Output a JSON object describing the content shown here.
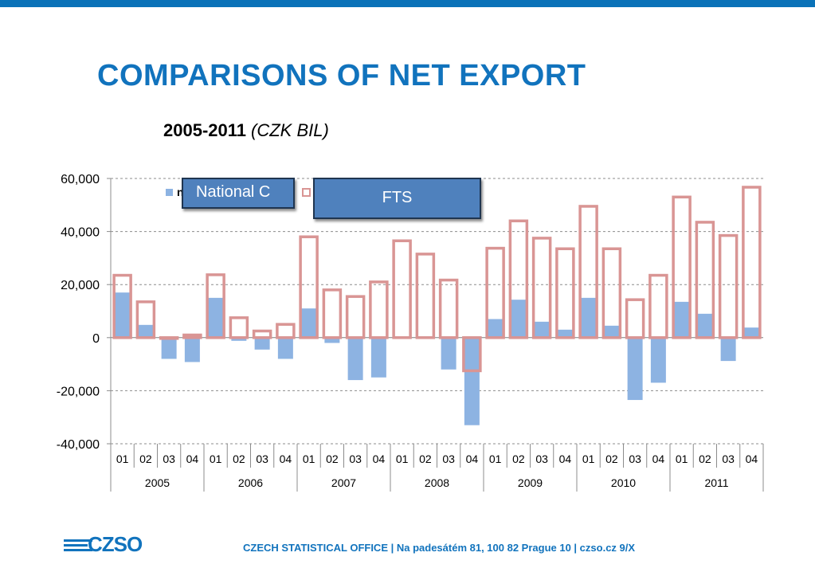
{
  "header": {
    "title": "COMPARISONS OF NET EXPORT"
  },
  "subtitle": {
    "years": "2005-2011",
    "unit": "(CZK BIL)"
  },
  "callouts": {
    "national": "National C",
    "fts": "FTS"
  },
  "legend": {
    "partial_text": "n"
  },
  "footer": {
    "text": "CZECH STATISTICAL OFFICE  |  Na padesátém 81, 100 82 Prague 10  |  czso.cz        9/X"
  },
  "logo": {
    "text": "CZSO"
  },
  "colors": {
    "brand": "#1173bd",
    "bar_fill": "#8db3e2",
    "bar_outline": "#d99594",
    "callout": "#4f81bd"
  },
  "chart_data": {
    "type": "bar",
    "title": "2005-2011 (CZK BIL)",
    "xlabel": "",
    "ylabel": "",
    "ylim": [
      -40000,
      60000
    ],
    "yticks": [
      -40000,
      -20000,
      0,
      20000,
      40000,
      60000
    ],
    "ytick_labels": [
      "-40,000",
      "-20,000",
      "0",
      "20,000",
      "40,000",
      "60,000"
    ],
    "grid": true,
    "categories": [
      "01",
      "02",
      "03",
      "04",
      "01",
      "02",
      "03",
      "04",
      "01",
      "02",
      "03",
      "04",
      "01",
      "02",
      "03",
      "04",
      "01",
      "02",
      "03",
      "04",
      "01",
      "02",
      "03",
      "04",
      "01",
      "02",
      "03",
      "04"
    ],
    "groups": [
      "2005",
      "2006",
      "2007",
      "2008",
      "2009",
      "2010",
      "2011"
    ],
    "series": [
      {
        "name": "National C",
        "style": "filled",
        "values": [
          17000,
          4800,
          -8000,
          -9200,
          15000,
          -1200,
          -4500,
          -8000,
          11000,
          -2000,
          -16000,
          -15000,
          -500,
          -300,
          -12000,
          -33000,
          7000,
          14300,
          6000,
          3000,
          15000,
          4500,
          -23500,
          -17000,
          13500,
          9000,
          -8800,
          3800
        ]
      },
      {
        "name": "FTS",
        "style": "outline",
        "values": [
          23500,
          13500,
          0,
          1000,
          23700,
          7500,
          2500,
          5000,
          38000,
          18000,
          15500,
          21000,
          36500,
          31500,
          21700,
          -12500,
          33700,
          44000,
          37500,
          33500,
          49500,
          33500,
          14300,
          23500,
          53000,
          43500,
          38500,
          56700
        ]
      }
    ]
  }
}
